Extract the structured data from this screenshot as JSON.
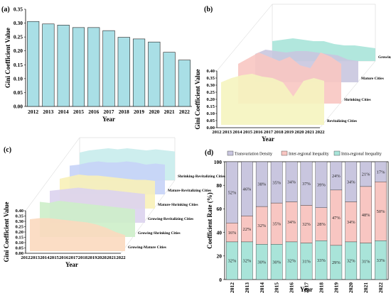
{
  "chart_data": [
    {
      "panel": "(a)",
      "type": "bar",
      "categories": [
        "2012",
        "2013",
        "2014",
        "2015",
        "2016",
        "2017",
        "2018",
        "2019",
        "2020",
        "2021",
        "2022"
      ],
      "values": [
        0.306,
        0.297,
        0.293,
        0.284,
        0.284,
        0.273,
        0.249,
        0.243,
        0.232,
        0.195,
        0.167
      ],
      "xlabel": "Year",
      "ylabel": "Gini Coefficient Value",
      "ylim": [
        0,
        0.35
      ],
      "yticks": [
        "0.00",
        "0.05",
        "0.10",
        "0.15",
        "0.20",
        "0.25",
        "0.30",
        "0.35"
      ],
      "color": "#a9dfe6"
    },
    {
      "panel": "(b)",
      "type": "area",
      "x": [
        "2012",
        "2013",
        "2014",
        "2015",
        "2016",
        "2017",
        "2018",
        "2019",
        "2020",
        "2021",
        "2022"
      ],
      "xlabel": "Year",
      "ylabel": "Gini Coefficient Value",
      "ylim": [
        0,
        0.4
      ],
      "yticks": [
        "0.00",
        "0.05",
        "0.10",
        "0.15",
        "0.20",
        "0.25",
        "0.30",
        "0.35",
        "0.40"
      ],
      "series": [
        {
          "name": "Revitalizing Cities",
          "color": "#f5f4bf",
          "values": [
            0.3,
            0.33,
            0.35,
            0.36,
            0.34,
            0.33,
            0.3,
            0.2,
            0.31,
            0.33,
            0.31
          ]
        },
        {
          "name": "Shrinking Cities",
          "color": "#f8c6c2",
          "values": [
            0.28,
            0.32,
            0.36,
            0.33,
            0.3,
            0.33,
            0.27,
            0.25,
            0.36,
            0.33,
            0.28
          ]
        },
        {
          "name": "Mature Cities",
          "color": "#c9c6df",
          "values": [
            0.2,
            0.23,
            0.22,
            0.21,
            0.22,
            0.22,
            0.21,
            0.2,
            0.19,
            0.16,
            0.15
          ]
        },
        {
          "name": "Growing Cities",
          "color": "#a9e4d9",
          "values": [
            0.14,
            0.15,
            0.16,
            0.15,
            0.14,
            0.14,
            0.12,
            0.11,
            0.11,
            0.1,
            0.09
          ]
        }
      ]
    },
    {
      "panel": "(c)",
      "type": "area",
      "x": [
        "2012",
        "2013",
        "2014",
        "2015",
        "2016",
        "2017",
        "2018",
        "2019",
        "2020",
        "2021",
        "2022"
      ],
      "xlabel": "Year",
      "ylabel": "Gini Coefficient Value",
      "ylim": [
        0,
        0.4
      ],
      "yticks": [
        "0.00",
        "0.05",
        "0.10",
        "0.15",
        "0.20",
        "0.25",
        "0.30",
        "0.35",
        "0.40"
      ],
      "series": [
        {
          "name": "Growing-Mature Cities",
          "color": "#fbd9bf",
          "values": [
            0.3,
            0.31,
            0.31,
            0.3,
            0.29,
            0.28,
            0.27,
            0.25,
            0.22,
            0.18,
            0.15
          ]
        },
        {
          "name": "Growing-Shrinking Cities",
          "color": "#cdeec9",
          "values": [
            0.33,
            0.32,
            0.34,
            0.33,
            0.32,
            0.31,
            0.3,
            0.29,
            0.28,
            0.27,
            0.26
          ]
        },
        {
          "name": "Growing-Revitalizing Cities",
          "color": "#dcd3ee",
          "values": [
            0.3,
            0.31,
            0.32,
            0.33,
            0.32,
            0.31,
            0.31,
            0.3,
            0.29,
            0.28,
            0.27
          ]
        },
        {
          "name": "Mature-Shrinking Cities",
          "color": "#f8f1b8",
          "values": [
            0.28,
            0.3,
            0.32,
            0.31,
            0.31,
            0.3,
            0.29,
            0.28,
            0.27,
            0.27,
            0.26
          ]
        },
        {
          "name": "Mature-Revitalizing Cities",
          "color": "#c7d3f7",
          "values": [
            0.27,
            0.28,
            0.3,
            0.31,
            0.3,
            0.3,
            0.31,
            0.3,
            0.28,
            0.29,
            0.28
          ]
        },
        {
          "name": "Shrinking-Revitalizing Cities",
          "color": "#c8ecec",
          "values": [
            0.26,
            0.28,
            0.29,
            0.3,
            0.29,
            0.3,
            0.29,
            0.28,
            0.29,
            0.28,
            0.27
          ]
        }
      ]
    },
    {
      "panel": "(d)",
      "type": "bar",
      "stacked": true,
      "categories": [
        "2012",
        "2013",
        "2014",
        "2015",
        "2016",
        "2017",
        "2018",
        "2019",
        "2020",
        "2021",
        "2022"
      ],
      "xlabel": "Year",
      "ylabel": "Coefficient Rate (%)",
      "ylim": [
        0,
        100
      ],
      "yticks": [
        "0",
        "20",
        "40",
        "60",
        "80",
        "100"
      ],
      "legend_position": "top",
      "series": [
        {
          "name": "Intra-regional Inequality",
          "color": "#a9e4d9",
          "values": [
            32,
            32,
            30,
            30,
            32,
            31,
            33,
            29,
            32,
            31,
            33
          ],
          "labels": [
            "32%",
            "32%",
            "30%",
            "30%",
            "32%",
            "31%",
            "33%",
            "29%",
            "32%",
            "31%",
            "33%"
          ]
        },
        {
          "name": "Inter-regional Inequality",
          "color": "#f8c6c2",
          "values": [
            16,
            22,
            32,
            35,
            34,
            32,
            28,
            47,
            34,
            48,
            50
          ],
          "labels": [
            "16%",
            "22%",
            "32%",
            "35%",
            "34%",
            "32%",
            "28%",
            "47%",
            "34%",
            "48%",
            "50%"
          ]
        },
        {
          "name": "Transvariation Density",
          "color": "#c9c6df",
          "values": [
            52,
            46,
            38,
            35,
            34,
            37,
            39,
            24,
            34,
            21,
            17
          ],
          "labels": [
            "52%",
            "46%",
            "38%",
            "35%",
            "34%",
            "37%",
            "39%",
            "24%",
            "34%",
            "21%",
            "17%"
          ]
        }
      ]
    }
  ]
}
